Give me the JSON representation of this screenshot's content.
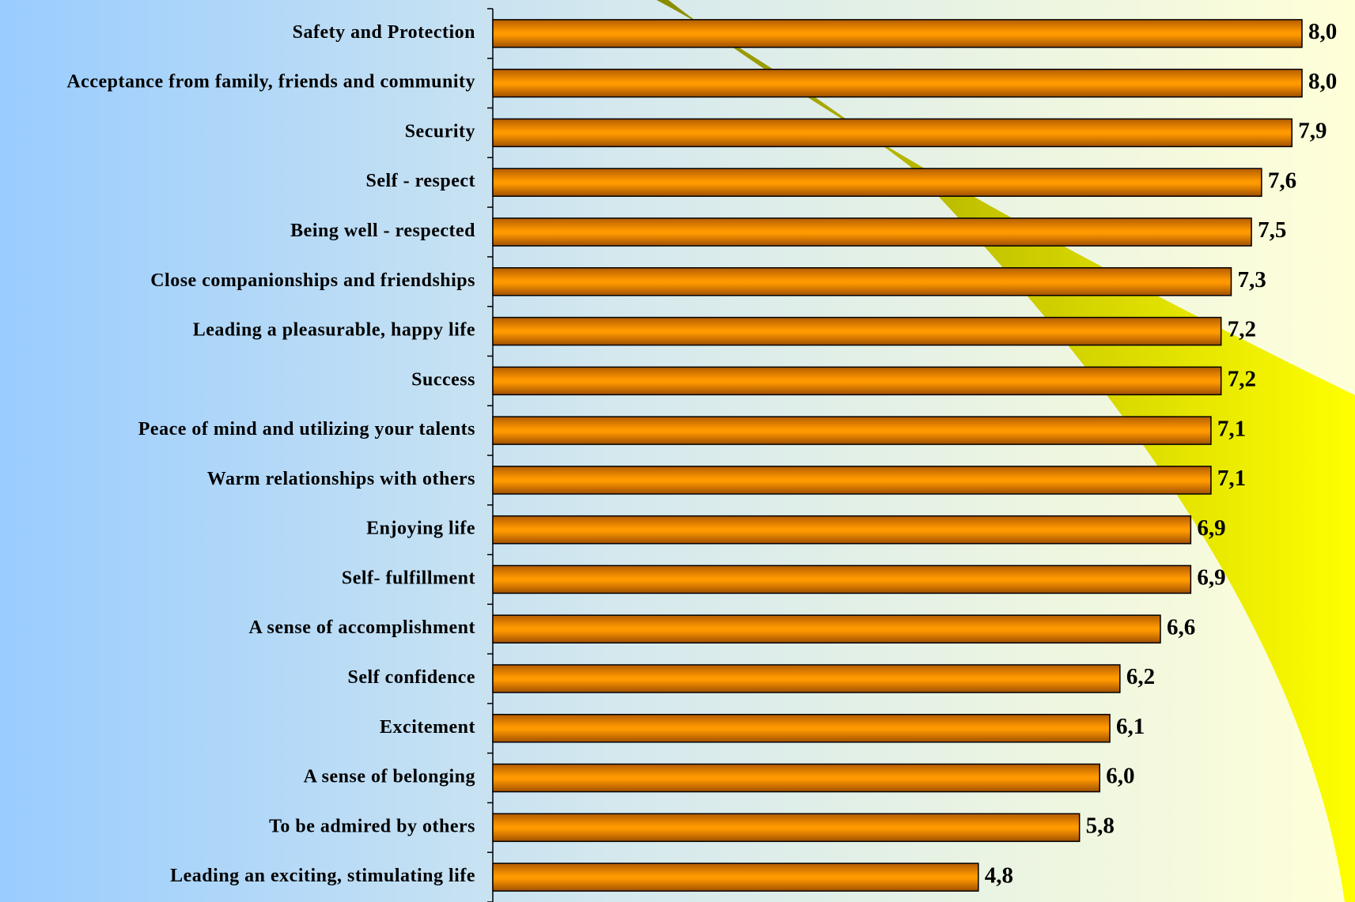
{
  "chart_data": {
    "type": "hbar",
    "categories": [
      "Safety and Protection",
      "Acceptance from family, friends and community",
      "Security",
      "Self - respect",
      "Being well - respected",
      "Close companionships and friendships",
      "Leading a pleasurable, happy life",
      "Success",
      "Peace of mind and utilizing your talents",
      "Warm relationships with others",
      "Enjoying life",
      "Self- fulfillment",
      "A sense of accomplishment",
      "Self confidence",
      "Excitement",
      "A sense of belonging",
      "To be admired by others",
      "Leading an exciting, stimulating life"
    ],
    "values": [
      8.0,
      8.0,
      7.9,
      7.6,
      7.5,
      7.3,
      7.2,
      7.2,
      7.1,
      7.1,
      6.9,
      6.9,
      6.6,
      6.2,
      6.1,
      6.0,
      5.8,
      4.8
    ],
    "value_labels": [
      "8,0",
      "8,0",
      "7,9",
      "7,6",
      "7,5",
      "7,3",
      "7,2",
      "7,2",
      "7,1",
      "7,1",
      "6,9",
      "6,9",
      "6,6",
      "6,2",
      "6,1",
      "6,0",
      "5,8",
      "4,8"
    ],
    "color": "#ff9900",
    "xlim": [
      0,
      8
    ]
  }
}
